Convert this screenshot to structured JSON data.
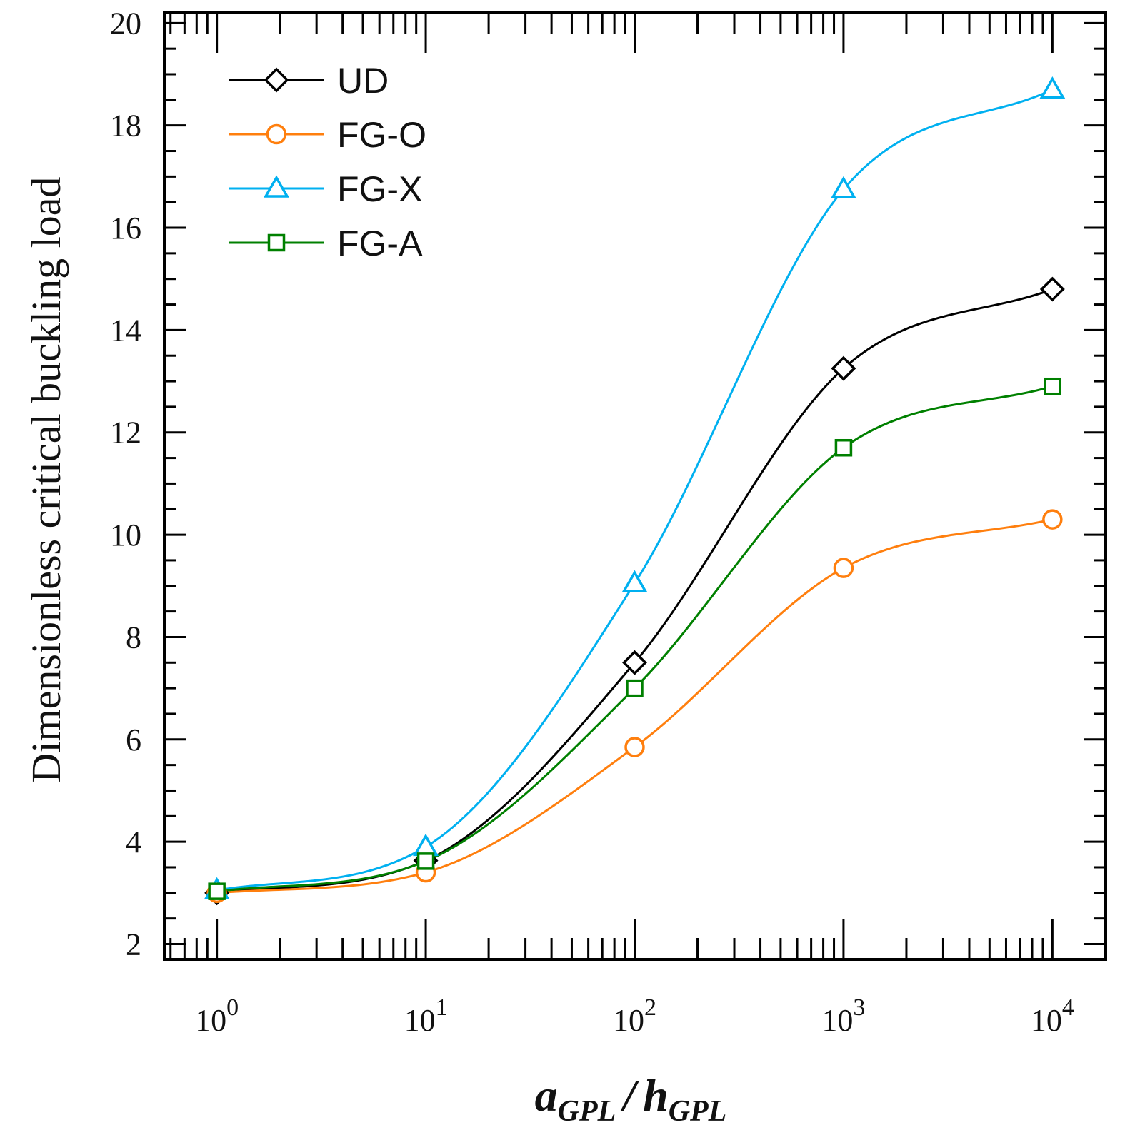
{
  "chart_data": {
    "type": "line",
    "title": "",
    "xlabel": {
      "numerator": "a",
      "numerator_sub": "GPL",
      "separator": "/",
      "denominator": "h",
      "denominator_sub": "GPL"
    },
    "ylabel": "Dimensionless critical buckling load",
    "xscale": "log",
    "xlim": [
      0.56,
      18000
    ],
    "ylim": [
      1.7,
      20.2
    ],
    "x_ticks": [
      {
        "base": "10",
        "exp": "0",
        "value": 1
      },
      {
        "base": "10",
        "exp": "1",
        "value": 10
      },
      {
        "base": "10",
        "exp": "2",
        "value": 100
      },
      {
        "base": "10",
        "exp": "3",
        "value": 1000
      },
      {
        "base": "10",
        "exp": "4",
        "value": 10000
      }
    ],
    "y_ticks": [
      "2",
      "4",
      "6",
      "8",
      "10",
      "12",
      "14",
      "16",
      "18",
      "20"
    ],
    "legend_position": "top-left",
    "x": [
      1,
      10,
      100,
      1000,
      10000
    ],
    "series": [
      {
        "name": "UD",
        "color": "#000000",
        "marker": "diamond",
        "values": [
          3.0,
          3.63,
          7.5,
          13.25,
          14.8
        ]
      },
      {
        "name": "FG-O",
        "color": "#ff7f0e",
        "marker": "circle",
        "values": [
          3.0,
          3.4,
          5.85,
          9.35,
          10.3
        ]
      },
      {
        "name": "FG-X",
        "color": "#00b0f0",
        "marker": "triangle",
        "values": [
          3.05,
          3.9,
          9.05,
          16.75,
          18.7
        ]
      },
      {
        "name": "FG-A",
        "color": "#008000",
        "marker": "square",
        "values": [
          3.03,
          3.62,
          7.0,
          11.7,
          12.9
        ]
      }
    ]
  }
}
